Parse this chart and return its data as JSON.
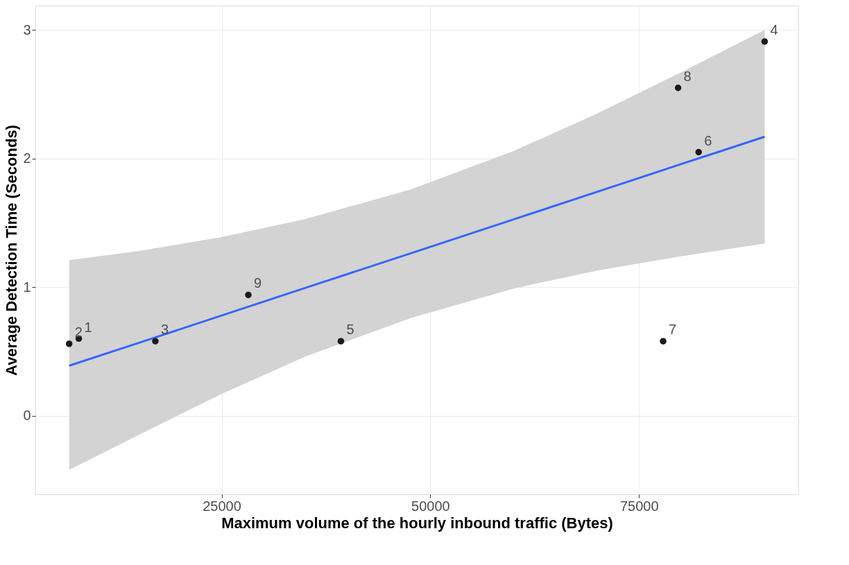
{
  "chart_data": {
    "type": "scatter",
    "xlabel": "Maximum volume of the hourly inbound traffic (Bytes)",
    "ylabel": "Average Detection Time (Seconds)",
    "xlim": [
      2690,
      94090
    ],
    "ylim": [
      -0.61,
      3.19
    ],
    "xticks": [
      25000,
      50000,
      75000
    ],
    "yticks": [
      0,
      1,
      2,
      3
    ],
    "grid": true,
    "series": [
      {
        "marker": "circle",
        "color": "#1a1a1a",
        "x": [
          7890,
          6740,
          17060,
          90050,
          39290,
          82140,
          77890,
          79680,
          28200
        ],
        "values": [
          0.6,
          0.56,
          0.58,
          2.91,
          0.58,
          2.05,
          0.58,
          2.55,
          0.94
        ]
      },
      {
        "type": "line",
        "color": "#3366ff",
        "line_style": "solid",
        "x": [
          6740,
          15000,
          25000,
          35000,
          47660,
          60000,
          70000,
          80000,
          90050
        ],
        "values": [
          0.39,
          0.566,
          0.78,
          0.994,
          1.264,
          1.528,
          1.742,
          1.956,
          2.17
        ],
        "lower": [
          -0.42,
          -0.15,
          0.17,
          0.46,
          0.76,
          0.99,
          1.13,
          1.24,
          1.34
        ],
        "upper": [
          1.21,
          1.28,
          1.39,
          1.53,
          1.76,
          2.06,
          2.35,
          2.67,
          3.0
        ]
      }
    ],
    "annotations": [
      {
        "text": "1",
        "x": 7890,
        "y": 0.6
      },
      {
        "text": "2",
        "x": 6740,
        "y": 0.56
      },
      {
        "text": "3",
        "x": 17060,
        "y": 0.58
      },
      {
        "text": "4",
        "x": 90050,
        "y": 2.91
      },
      {
        "text": "5",
        "x": 39290,
        "y": 0.58
      },
      {
        "text": "6",
        "x": 82140,
        "y": 2.05
      },
      {
        "text": "7",
        "x": 77890,
        "y": 0.58
      },
      {
        "text": "8",
        "x": 79680,
        "y": 2.55
      },
      {
        "text": "9",
        "x": 28200,
        "y": 0.94
      }
    ]
  }
}
